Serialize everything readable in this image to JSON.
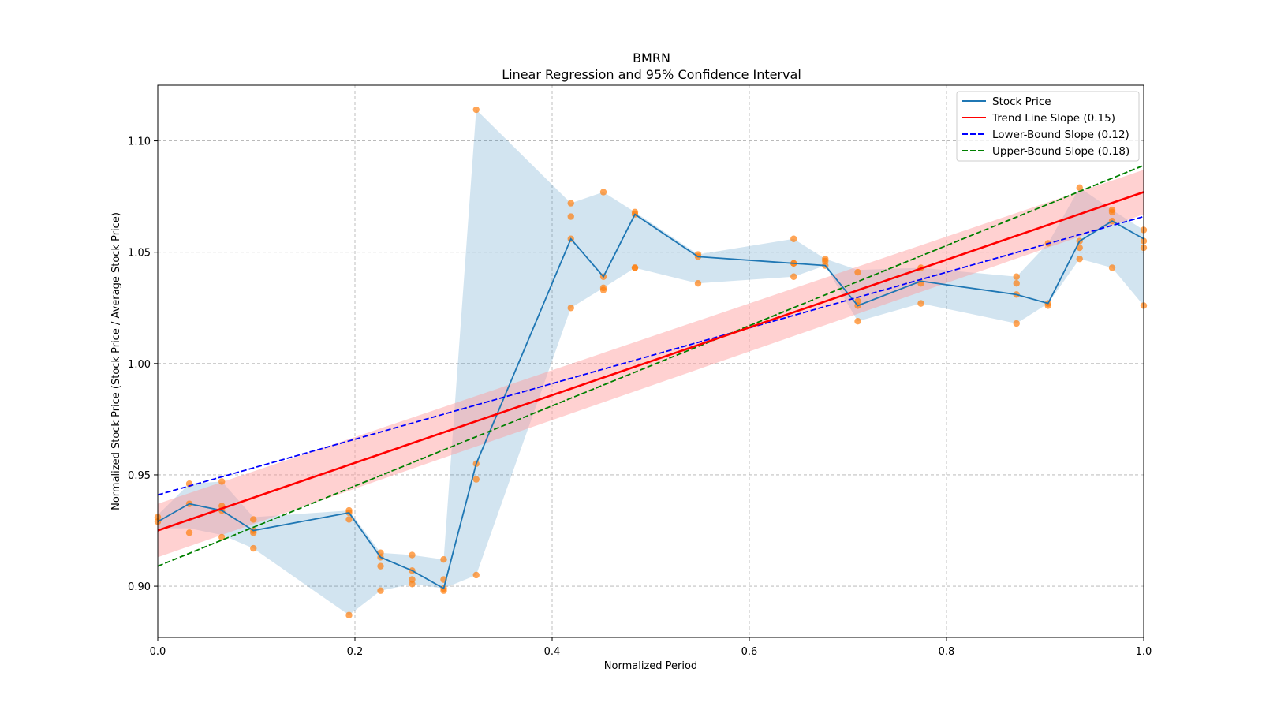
{
  "chart_data": {
    "type": "line",
    "title": "BMRN",
    "subtitle": "Linear Regression and 95% Confidence Interval",
    "xlabel": "Normalized Period",
    "ylabel": "Normalized Stock Price (Stock Price / Average Stock Price)",
    "xlim": [
      0,
      1
    ],
    "ylim": [
      0.877,
      1.125
    ],
    "xticks": [
      0,
      0.2,
      0.4,
      0.6,
      0.8,
      1.0
    ],
    "xtick_labels": [
      "0.0",
      "0.2",
      "0.4",
      "0.6",
      "0.8",
      "1.0"
    ],
    "yticks": [
      0.9,
      0.95,
      1.0,
      1.05,
      1.1
    ],
    "ytick_labels": [
      "0.90",
      "0.95",
      "1.00",
      "1.05",
      "1.10"
    ],
    "grid": true,
    "legend_position": "top-right",
    "colors": {
      "stock": "#1f77b4",
      "band": "#1f77b4",
      "trend": "#ff0000",
      "trend_band": "#ff9a9a",
      "lower": "#0000ff",
      "upper": "#008000",
      "points": "#ff7f0e"
    },
    "stock_series": {
      "name": "Stock Price",
      "x": [
        0.0,
        0.032,
        0.065,
        0.097,
        0.194,
        0.226,
        0.258,
        0.29,
        0.323,
        0.419,
        0.452,
        0.484,
        0.548,
        0.645,
        0.677,
        0.71,
        0.774,
        0.871,
        0.903,
        0.935,
        0.968,
        1.0
      ],
      "y": [
        0.929,
        0.937,
        0.934,
        0.925,
        0.933,
        0.913,
        0.907,
        0.899,
        0.955,
        1.056,
        1.039,
        1.067,
        1.048,
        1.045,
        1.044,
        1.026,
        1.037,
        1.031,
        1.027,
        1.055,
        1.064,
        1.056
      ],
      "lower": [
        0.926,
        0.926,
        0.923,
        0.917,
        0.887,
        0.898,
        0.901,
        0.899,
        0.905,
        1.025,
        1.034,
        1.043,
        1.036,
        1.039,
        1.044,
        1.019,
        1.027,
        1.018,
        1.027,
        1.047,
        1.043,
        1.026
      ],
      "upper": [
        0.932,
        0.946,
        0.947,
        0.931,
        0.934,
        0.915,
        0.914,
        0.912,
        1.114,
        1.072,
        1.077,
        1.068,
        1.049,
        1.056,
        1.047,
        1.042,
        1.043,
        1.039,
        1.054,
        1.079,
        1.069,
        1.06
      ]
    },
    "scatter": {
      "x": [
        0.0,
        0.0,
        0.032,
        0.032,
        0.032,
        0.065,
        0.065,
        0.065,
        0.065,
        0.097,
        0.097,
        0.097,
        0.097,
        0.194,
        0.194,
        0.194,
        0.194,
        0.226,
        0.226,
        0.226,
        0.226,
        0.258,
        0.258,
        0.258,
        0.258,
        0.29,
        0.29,
        0.29,
        0.29,
        0.323,
        0.323,
        0.323,
        0.323,
        0.419,
        0.419,
        0.419,
        0.419,
        0.452,
        0.452,
        0.452,
        0.452,
        0.484,
        0.484,
        0.484,
        0.484,
        0.548,
        0.548,
        0.548,
        0.645,
        0.645,
        0.645,
        0.645,
        0.677,
        0.677,
        0.677,
        0.71,
        0.71,
        0.71,
        0.71,
        0.774,
        0.774,
        0.774,
        0.871,
        0.871,
        0.871,
        0.871,
        0.903,
        0.903,
        0.903,
        0.935,
        0.935,
        0.935,
        0.935,
        0.968,
        0.968,
        0.968,
        0.968,
        1.0,
        1.0,
        1.0,
        1.0
      ],
      "y": [
        0.929,
        0.931,
        0.946,
        0.937,
        0.924,
        0.947,
        0.936,
        0.934,
        0.922,
        0.93,
        0.925,
        0.924,
        0.917,
        0.934,
        0.93,
        0.933,
        0.887,
        0.915,
        0.913,
        0.909,
        0.898,
        0.914,
        0.907,
        0.903,
        0.901,
        0.912,
        0.903,
        0.899,
        0.898,
        1.114,
        0.955,
        0.948,
        0.905,
        1.072,
        1.066,
        1.056,
        1.025,
        1.077,
        1.039,
        1.034,
        1.033,
        1.068,
        1.067,
        1.043,
        1.043,
        1.049,
        1.048,
        1.036,
        1.056,
        1.045,
        1.045,
        1.039,
        1.047,
        1.046,
        1.044,
        1.041,
        1.028,
        1.026,
        1.019,
        1.043,
        1.036,
        1.027,
        1.039,
        1.036,
        1.031,
        1.018,
        1.054,
        1.027,
        1.026,
        1.079,
        1.055,
        1.052,
        1.047,
        1.069,
        1.068,
        1.064,
        1.043,
        1.06,
        1.055,
        1.052,
        1.026
      ]
    },
    "trend": {
      "name": "Trend Line Slope (0.15)",
      "x": [
        0,
        1
      ],
      "y": [
        0.925,
        1.077
      ],
      "band_lower": [
        0.913,
        1.067
      ],
      "band_upper": [
        0.937,
        1.087
      ]
    },
    "lower_bound": {
      "name": "Lower-Bound Slope (0.12)",
      "x": [
        0,
        1
      ],
      "y": [
        0.941,
        1.066
      ]
    },
    "upper_bound": {
      "name": "Upper-Bound Slope (0.18)",
      "x": [
        0,
        1
      ],
      "y": [
        0.909,
        1.089
      ]
    }
  }
}
